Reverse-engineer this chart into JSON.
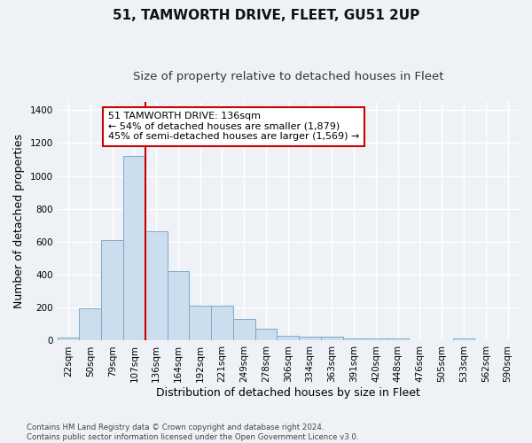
{
  "title": "51, TAMWORTH DRIVE, FLEET, GU51 2UP",
  "subtitle": "Size of property relative to detached houses in Fleet",
  "xlabel": "Distribution of detached houses by size in Fleet",
  "ylabel": "Number of detached properties",
  "categories": [
    "22sqm",
    "50sqm",
    "79sqm",
    "107sqm",
    "136sqm",
    "164sqm",
    "192sqm",
    "221sqm",
    "249sqm",
    "278sqm",
    "306sqm",
    "334sqm",
    "363sqm",
    "391sqm",
    "420sqm",
    "448sqm",
    "476sqm",
    "505sqm",
    "533sqm",
    "562sqm",
    "590sqm"
  ],
  "values": [
    18,
    195,
    608,
    1120,
    665,
    420,
    215,
    215,
    130,
    75,
    32,
    25,
    25,
    15,
    12,
    12,
    0,
    0,
    12,
    0,
    0
  ],
  "bar_color": "#ccdded",
  "bar_edge_color": "#7aaac8",
  "vline_color": "#cc0000",
  "annotation_line1": "51 TAMWORTH DRIVE: 136sqm",
  "annotation_line2": "← 54% of detached houses are smaller (1,879)",
  "annotation_line3": "45% of semi-detached houses are larger (1,569) →",
  "annotation_box_color": "white",
  "annotation_box_edge_color": "#cc0000",
  "ylim": [
    0,
    1450
  ],
  "yticks": [
    0,
    200,
    400,
    600,
    800,
    1000,
    1200,
    1400
  ],
  "footer": "Contains HM Land Registry data © Crown copyright and database right 2024.\nContains public sector information licensed under the Open Government Licence v3.0.",
  "background_color": "#eef2f7",
  "grid_color": "white",
  "title_fontsize": 11,
  "subtitle_fontsize": 9.5,
  "annotation_fontsize": 8,
  "tick_fontsize": 7.5,
  "ylabel_fontsize": 9,
  "xlabel_fontsize": 9
}
